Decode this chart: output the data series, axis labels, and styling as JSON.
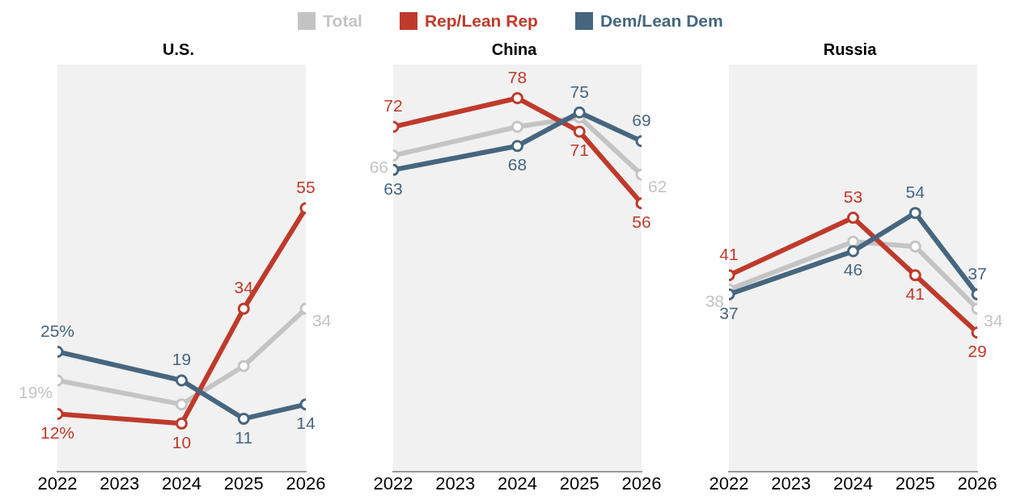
{
  "chart_data": [
    {
      "type": "line",
      "title": "U.S.",
      "legend": "top",
      "marker": "circle",
      "tick_labels": "x",
      "grid": false,
      "xlim": [
        2022,
        2026
      ],
      "xticks": [
        2022,
        2023,
        2024,
        2025,
        2026
      ],
      "ylim": [
        0,
        85
      ],
      "x": [
        2022,
        2024,
        2025,
        2026
      ],
      "series": [
        {
          "name": "Total",
          "color": "#c4c4c4",
          "values": [
            19,
            14,
            22,
            34
          ],
          "value_labels": [
            "19%",
            null,
            null,
            "34"
          ]
        },
        {
          "name": "Rep/Lean Rep",
          "color": "#bf3a2b",
          "values": [
            12,
            10,
            34,
            55
          ],
          "value_labels": [
            "12%",
            "10",
            "34",
            "55"
          ]
        },
        {
          "name": "Dem/Lean Dem",
          "color": "#46667f",
          "values": [
            25,
            19,
            11,
            14
          ],
          "value_labels": [
            "25%",
            "19",
            "11",
            "14"
          ]
        }
      ]
    },
    {
      "type": "line",
      "title": "China",
      "marker": "circle",
      "tick_labels": "x",
      "grid": false,
      "xlim": [
        2022,
        2026
      ],
      "xticks": [
        2022,
        2023,
        2024,
        2025,
        2026
      ],
      "ylim": [
        0,
        85
      ],
      "x": [
        2022,
        2024,
        2025,
        2026
      ],
      "series": [
        {
          "color": "#c4c4c4",
          "values": [
            66,
            72,
            74,
            62
          ],
          "value_labels": [
            "66",
            null,
            null,
            "62"
          ]
        },
        {
          "color": "#bf3a2b",
          "values": [
            72,
            78,
            71,
            56
          ],
          "value_labels": [
            "72",
            "78",
            "71",
            "56"
          ]
        },
        {
          "color": "#46667f",
          "values": [
            63,
            68,
            75,
            69
          ],
          "value_labels": [
            "63",
            "68",
            "75",
            "69"
          ]
        }
      ]
    },
    {
      "type": "line",
      "title": "Russia",
      "marker": "circle",
      "tick_labels": "x",
      "grid": false,
      "xlim": [
        2022,
        2026
      ],
      "xticks": [
        2022,
        2023,
        2024,
        2025,
        2026
      ],
      "ylim": [
        0,
        85
      ],
      "x": [
        2022,
        2024,
        2025,
        2026
      ],
      "series": [
        {
          "color": "#c4c4c4",
          "values": [
            38,
            48,
            47,
            34
          ],
          "value_labels": [
            "38",
            null,
            null,
            "34"
          ]
        },
        {
          "color": "#bf3a2b",
          "values": [
            41,
            53,
            41,
            29
          ],
          "value_labels": [
            "41",
            "53",
            "41",
            "29"
          ]
        },
        {
          "color": "#46667f",
          "values": [
            37,
            46,
            54,
            37
          ],
          "value_labels": [
            "37",
            "46",
            "54",
            "37"
          ]
        }
      ]
    }
  ]
}
